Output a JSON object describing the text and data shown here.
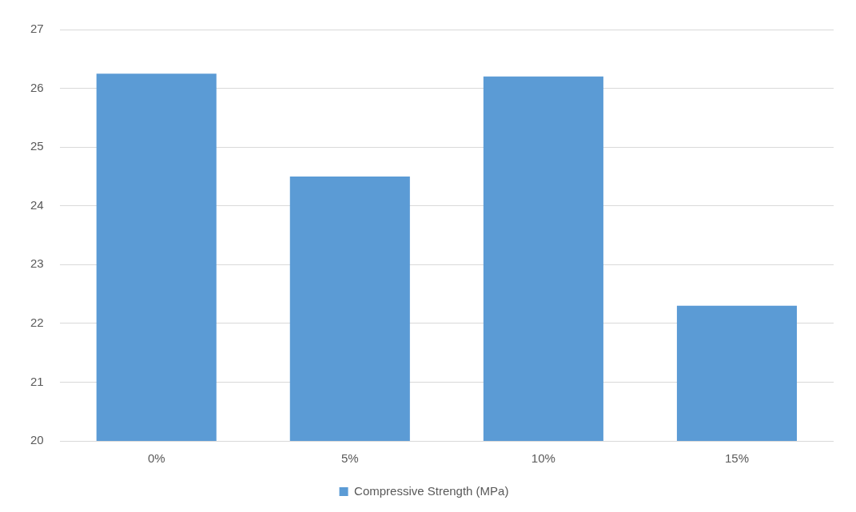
{
  "chart_data": {
    "type": "bar",
    "categories": [
      "0%",
      "5%",
      "10%",
      "15%"
    ],
    "series": [
      {
        "name": "Compressive Strength (MPa)",
        "color": "#5b9bd5",
        "values": [
          26.25,
          24.5,
          26.2,
          22.3
        ]
      }
    ],
    "ylim": [
      20,
      27
    ],
    "yticks": [
      20,
      21,
      22,
      23,
      24,
      25,
      26,
      27
    ],
    "grid": "y",
    "legend": "bottom"
  }
}
